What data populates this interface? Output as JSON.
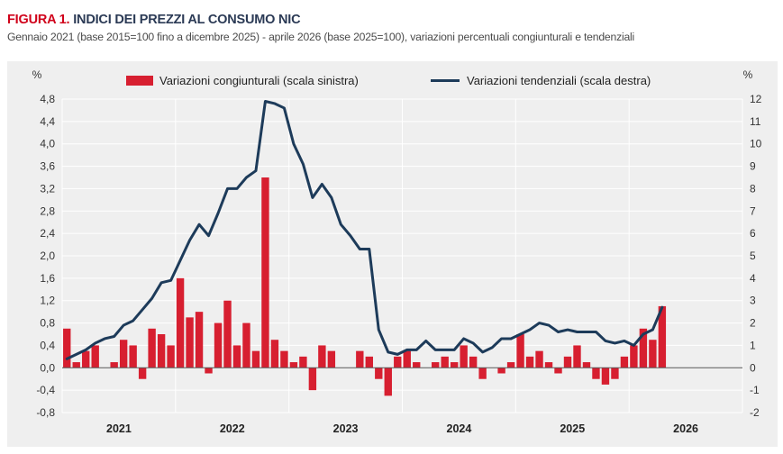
{
  "figure": {
    "label": "FIGURA 1.",
    "title": "INDICI DEI PREZZI AL CONSUMO NIC",
    "subtitle": "Gennaio 2021 (base 2015=100 fino a dicembre 2025) - aprile 2026 (base 2025=100), variazioni percentuali congiunturali e tendenziali"
  },
  "colors": {
    "bar": "#d71f30",
    "line": "#1d3b5a",
    "background": "#efefef",
    "grid": "#ffffff"
  },
  "chart_data": {
    "type": "bar+line",
    "left_axis": {
      "unit": "%",
      "min": -0.8,
      "max": 4.8,
      "step": 0.4,
      "ticks": [
        "-0,8",
        "-0,4",
        "0,0",
        "0,4",
        "0,8",
        "1,2",
        "1,6",
        "2,0",
        "2,4",
        "2,8",
        "3,2",
        "3,6",
        "4,0",
        "4,4",
        "4,8"
      ]
    },
    "right_axis": {
      "unit": "%",
      "min": -2,
      "max": 12,
      "step": 1,
      "ticks": [
        "-2",
        "-1",
        "0",
        "1",
        "2",
        "3",
        "4",
        "5",
        "6",
        "7",
        "8",
        "9",
        "10",
        "11",
        "12"
      ]
    },
    "x_axis": {
      "years": [
        "2021",
        "2022",
        "2023",
        "2024",
        "2025",
        "2026"
      ],
      "months_per_year": 12
    },
    "legend": {
      "position": "top",
      "items": [
        {
          "name": "Variazioni congiunturali (scala sinistra)",
          "kind": "bar"
        },
        {
          "name": "Variazioni tendenziali (scala destra)",
          "kind": "line"
        }
      ]
    },
    "series": [
      {
        "name": "Variazioni congiunturali (scala sinistra)",
        "type": "bar",
        "axis": "left",
        "values": [
          0.7,
          0.1,
          0.3,
          0.4,
          0.0,
          0.1,
          0.5,
          0.4,
          -0.2,
          0.7,
          0.6,
          0.4,
          1.6,
          0.9,
          1.0,
          -0.1,
          0.8,
          1.2,
          0.4,
          0.8,
          0.3,
          3.4,
          0.5,
          0.3,
          0.1,
          0.2,
          -0.4,
          0.4,
          0.3,
          0.0,
          0.0,
          0.3,
          0.2,
          -0.2,
          -0.5,
          0.2,
          0.3,
          0.1,
          0.0,
          0.1,
          0.2,
          0.1,
          0.4,
          0.2,
          -0.2,
          0.0,
          -0.1,
          0.1,
          0.6,
          0.2,
          0.3,
          0.1,
          -0.1,
          0.2,
          0.4,
          0.1,
          -0.2,
          -0.3,
          -0.2,
          0.2,
          0.4,
          0.7,
          0.5,
          1.1
        ]
      },
      {
        "name": "Variazioni tendenziali (scala destra)",
        "type": "line",
        "axis": "right",
        "values": [
          0.4,
          0.6,
          0.8,
          1.1,
          1.3,
          1.4,
          1.9,
          2.1,
          2.6,
          3.1,
          3.8,
          3.9,
          4.8,
          5.7,
          6.4,
          5.9,
          6.9,
          8.0,
          8.0,
          8.5,
          8.8,
          11.9,
          11.8,
          11.6,
          10.0,
          9.1,
          7.6,
          8.2,
          7.6,
          6.4,
          5.9,
          5.3,
          5.3,
          1.7,
          0.7,
          0.6,
          0.8,
          0.8,
          1.2,
          0.8,
          0.8,
          0.8,
          1.3,
          1.1,
          0.7,
          0.9,
          1.3,
          1.3,
          1.5,
          1.7,
          2.0,
          1.9,
          1.6,
          1.7,
          1.6,
          1.6,
          1.6,
          1.2,
          1.1,
          1.2,
          1.0,
          1.5,
          1.7,
          2.7
        ]
      }
    ]
  }
}
